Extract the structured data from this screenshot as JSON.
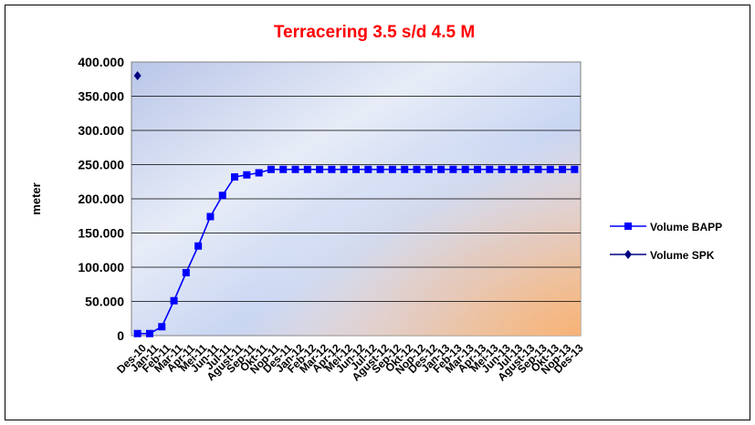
{
  "chart_data": {
    "type": "line",
    "title": "Terracering 3.5 s/d 4.5 M",
    "ylabel": "meter",
    "xlabel": "",
    "ylim": [
      0,
      400000
    ],
    "y_ticks": [
      "0",
      "50.000",
      "100.000",
      "150.000",
      "200.000",
      "250.000",
      "300.000",
      "350.000",
      "400.000"
    ],
    "categories": [
      "Des-10",
      "Jan-11",
      "Feb-11",
      "Mar-11",
      "Apr-11",
      "Mei-11",
      "Jun-11",
      "Jul-11",
      "Agust-11",
      "Sep-11",
      "Okt-11",
      "Nop-11",
      "Des-11",
      "Jan-12",
      "Feb-12",
      "Mar-12",
      "Apr-12",
      "Mei-12",
      "Jun-12",
      "Jul-12",
      "Agust-12",
      "Sep-12",
      "Okt-12",
      "Nop-12",
      "Des-12",
      "Jan-13",
      "Feb-13",
      "Mar-13",
      "Apr-13",
      "Mei-13",
      "Jun-13",
      "Jul-13",
      "Agust-13",
      "Sep-13",
      "Okt-13",
      "Nop-13",
      "Des-13"
    ],
    "series": [
      {
        "name": "Volume BAPP",
        "color": "#0000ff",
        "marker": "square",
        "values": [
          3000,
          3000,
          13000,
          51000,
          92000,
          131000,
          174000,
          205000,
          232000,
          235000,
          238000,
          243000,
          243000,
          243000,
          243000,
          243000,
          243000,
          243000,
          243000,
          243000,
          243000,
          243000,
          243000,
          243000,
          243000,
          243000,
          243000,
          243000,
          243000,
          243000,
          243000,
          243000,
          243000,
          243000,
          243000,
          243000,
          243000
        ]
      },
      {
        "name": "Volume SPK",
        "color": "#000080",
        "marker": "diamond",
        "values": [
          380000,
          null,
          null,
          null,
          null,
          null,
          null,
          null,
          null,
          null,
          null,
          null,
          null,
          null,
          null,
          null,
          null,
          null,
          null,
          null,
          null,
          null,
          null,
          null,
          null,
          null,
          null,
          null,
          null,
          null,
          null,
          null,
          null,
          null,
          null,
          null,
          null
        ]
      }
    ],
    "grid": true,
    "legend_position": "right"
  }
}
